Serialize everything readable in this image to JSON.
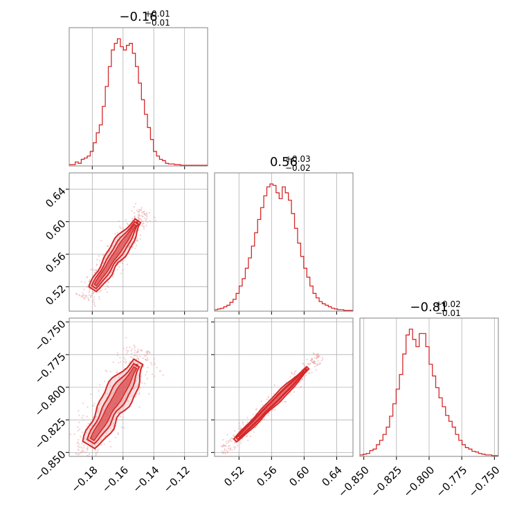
{
  "colors": {
    "accent": "#d62728",
    "accent_fill": "#e8a7a8",
    "grid": "#b0b0b0",
    "frame": "#808080"
  },
  "chart_data": [
    {
      "type": "histogram",
      "panel": "p0_hist",
      "title_value": "−0.16",
      "title_plus": "+0.01",
      "title_minus": "−0.01",
      "range": [
        -0.195,
        -0.105
      ],
      "ticks": [
        -0.18,
        -0.16,
        -0.14,
        -0.12
      ],
      "tick_labels": [],
      "grid": true,
      "counts": [
        2,
        2,
        6,
        4,
        10,
        12,
        15,
        22,
        35,
        50,
        62,
        90,
        120,
        150,
        175,
        185,
        192,
        180,
        175,
        182,
        185,
        170,
        150,
        125,
        100,
        78,
        58,
        40,
        22,
        15,
        10,
        8,
        4,
        3,
        3,
        2,
        2,
        1,
        1,
        1,
        1,
        1,
        1,
        1,
        1,
        1
      ]
    },
    {
      "type": "contour",
      "panel": "p1_vs_p0",
      "x_range": [
        -0.195,
        -0.105
      ],
      "y_range": [
        0.49,
        0.66
      ],
      "x_ticks": [
        -0.18,
        -0.16,
        -0.14,
        -0.12
      ],
      "y_ticks": [
        0.52,
        0.56,
        0.6,
        0.64
      ],
      "y_tick_labels": [
        "0.52",
        "0.56",
        "0.60",
        "0.64"
      ],
      "grid": true,
      "core": {
        "from": [
          -0.178,
          0.522
        ],
        "to": [
          -0.152,
          0.596
        ],
        "half_width": 0.0035
      },
      "levels": [
        {
          "name": "outer",
          "half_width_scale": 3.0,
          "extend": 0.006
        },
        {
          "name": "inner",
          "half_width_scale": 1.8,
          "extend": 0.003
        }
      ]
    },
    {
      "type": "histogram",
      "panel": "p1_hist",
      "title_value": "0.56",
      "title_plus": "+0.03",
      "title_minus": "−0.02",
      "range": [
        0.49,
        0.66
      ],
      "ticks": [
        0.52,
        0.56,
        0.6,
        0.64
      ],
      "tick_labels": [],
      "grid": true,
      "counts": [
        2,
        3,
        4,
        6,
        8,
        12,
        16,
        24,
        34,
        44,
        58,
        72,
        88,
        106,
        124,
        140,
        156,
        168,
        172,
        170,
        160,
        152,
        168,
        160,
        150,
        132,
        112,
        92,
        74,
        58,
        46,
        34,
        24,
        18,
        13,
        10,
        8,
        6,
        4,
        3,
        2,
        2,
        1,
        1,
        1
      ]
    },
    {
      "type": "contour",
      "panel": "p2_vs_p0",
      "x_range": [
        -0.195,
        -0.105
      ],
      "y_range": [
        -0.853,
        -0.747
      ],
      "x_ticks": [
        -0.18,
        -0.16,
        -0.14,
        -0.12
      ],
      "x_tick_labels": [
        "−0.18",
        "−0.16",
        "−0.14",
        "−0.12"
      ],
      "y_ticks": [
        -0.85,
        -0.825,
        -0.8,
        -0.775,
        -0.75
      ],
      "y_tick_labels": [
        "−0.850",
        "−0.825",
        "−0.800",
        "−0.775",
        "−0.750"
      ],
      "grid": true,
      "core": {
        "from": [
          -0.18,
          -0.84
        ],
        "to": [
          -0.152,
          -0.785
        ],
        "half_width": 0.0035
      },
      "levels": [
        {
          "name": "outer",
          "half_width_scale": 3.0,
          "extend": 0.005
        },
        {
          "name": "inner",
          "half_width_scale": 1.8,
          "extend": 0.002
        }
      ]
    },
    {
      "type": "contour",
      "panel": "p2_vs_p1",
      "x_range": [
        0.49,
        0.66
      ],
      "y_range": [
        -0.853,
        -0.747
      ],
      "x_ticks": [
        0.52,
        0.56,
        0.6,
        0.64
      ],
      "x_tick_labels": [
        "0.52",
        "0.56",
        "0.60",
        "0.64"
      ],
      "y_ticks": [
        -0.85,
        -0.825,
        -0.8,
        -0.775,
        -0.75
      ],
      "y_tick_labels": [],
      "grid": true,
      "core": {
        "from": [
          0.52,
          -0.838
        ],
        "to": [
          0.6,
          -0.788
        ],
        "half_width": 0.0012
      },
      "levels": [
        {
          "name": "outer",
          "half_width_scale": 2.5,
          "extend": 0.004
        },
        {
          "name": "inner",
          "half_width_scale": 1.4,
          "extend": 0.002
        }
      ]
    },
    {
      "type": "histogram",
      "panel": "p2_hist",
      "title_value": "−0.81",
      "title_plus": "+0.02",
      "title_minus": "−0.01",
      "range": [
        -0.853,
        -0.747
      ],
      "ticks": [
        -0.85,
        -0.825,
        -0.8,
        -0.775,
        -0.75
      ],
      "tick_labels": [
        "−0.850",
        "−0.825",
        "−0.800",
        "−0.775",
        "−0.750"
      ],
      "grid": true,
      "counts": [
        2,
        3,
        4,
        8,
        10,
        16,
        22,
        30,
        40,
        55,
        72,
        92,
        112,
        140,
        166,
        174,
        160,
        150,
        168,
        168,
        150,
        126,
        110,
        94,
        80,
        68,
        56,
        48,
        40,
        30,
        22,
        16,
        12,
        10,
        7,
        6,
        4,
        3,
        2,
        2,
        1,
        1
      ]
    }
  ]
}
